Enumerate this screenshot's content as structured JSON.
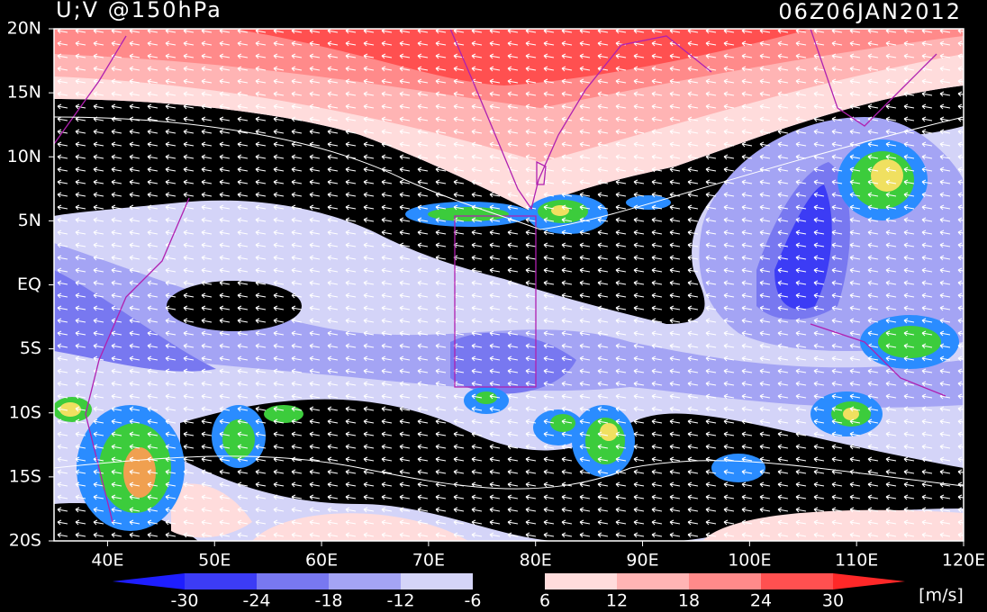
{
  "header": {
    "title": "U;V @150hPa",
    "time": "06Z06JAN2012"
  },
  "map": {
    "xlim": [
      35,
      120
    ],
    "ylim": [
      -20,
      20
    ],
    "xticks": [
      {
        "value": 40,
        "label": "40E"
      },
      {
        "value": 50,
        "label": "50E"
      },
      {
        "value": 60,
        "label": "60E"
      },
      {
        "value": 70,
        "label": "70E"
      },
      {
        "value": 80,
        "label": "80E"
      },
      {
        "value": 90,
        "label": "90E"
      },
      {
        "value": 100,
        "label": "100E"
      },
      {
        "value": 110,
        "label": "110E"
      },
      {
        "value": 120,
        "label": "120E"
      }
    ],
    "yticks": [
      {
        "value": 20,
        "label": "20N"
      },
      {
        "value": 15,
        "label": "15N"
      },
      {
        "value": 10,
        "label": "10N"
      },
      {
        "value": 5,
        "label": "5N"
      },
      {
        "value": 0,
        "label": "EQ"
      },
      {
        "value": -5,
        "label": "5S"
      },
      {
        "value": -10,
        "label": "10S"
      },
      {
        "value": -15,
        "label": "15S"
      },
      {
        "value": -20,
        "label": "20S"
      }
    ],
    "colorbar": {
      "ticks": [
        -30,
        -24,
        -18,
        -12,
        -6,
        6,
        12,
        18,
        24,
        30
      ],
      "colors": [
        "#1e1eff",
        "#3c3cf5",
        "#7878f0",
        "#a4a4f4",
        "#d4d4f8",
        "#000000",
        "#ffdcdc",
        "#ffb4b4",
        "#ff8a8a",
        "#ff5050",
        "#ff2828"
      ],
      "unit": "[m/s]"
    }
  }
}
